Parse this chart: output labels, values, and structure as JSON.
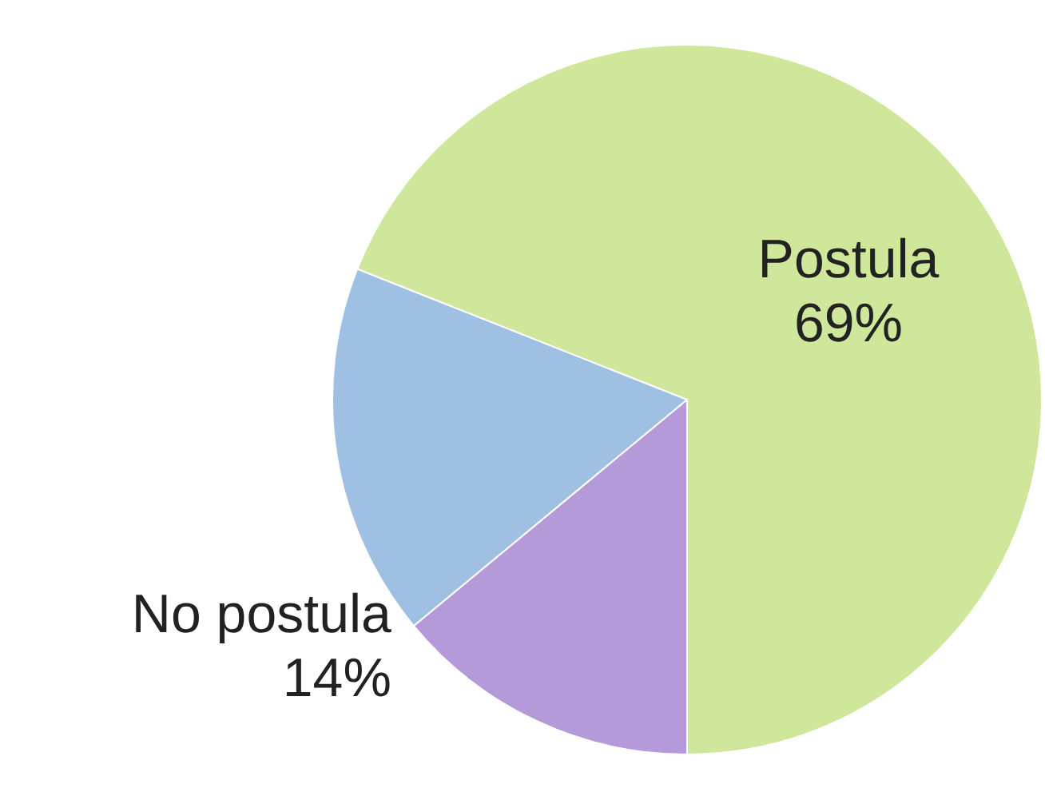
{
  "chart_data": {
    "type": "pie",
    "categories": [
      "No postula",
      null,
      "Postula"
    ],
    "values": [
      14,
      17,
      69
    ],
    "value_labels": [
      "14%",
      null,
      "69%"
    ],
    "colors": [
      "#b49ad8",
      "#9fbfe3",
      "#cfe79a"
    ]
  }
}
